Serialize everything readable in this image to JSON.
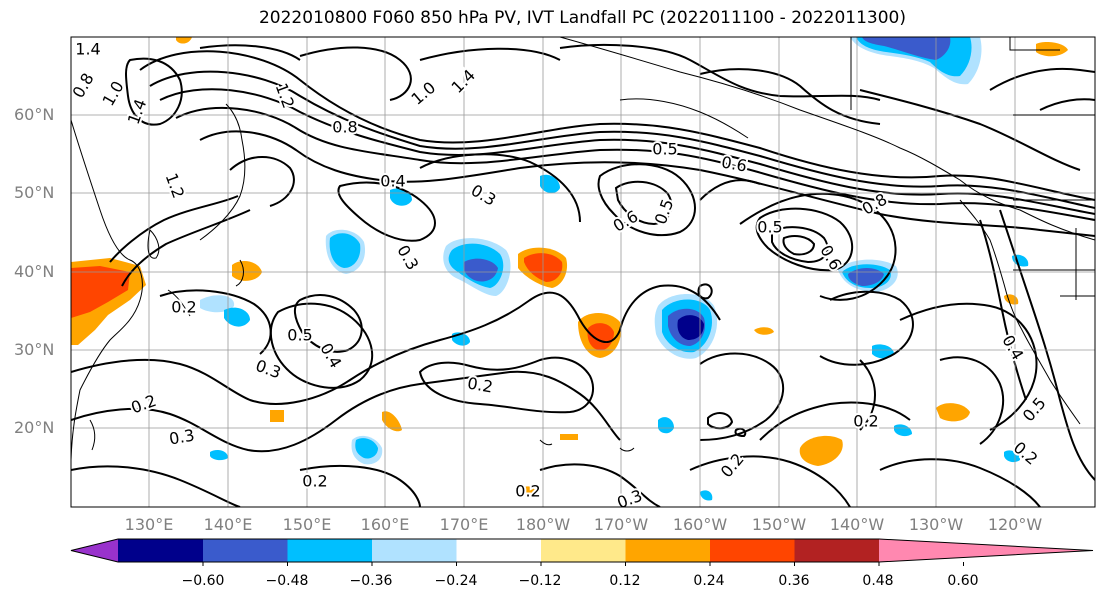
{
  "title": "2022010800 F060 850 hPa PV, IVT Landfall PC (2022011100 - 2022011300)",
  "lat_labels": [
    "60°N",
    "50°N",
    "40°N",
    "30°N",
    "20°N"
  ],
  "lon_labels": [
    "130°E",
    "140°E",
    "150°E",
    "160°E",
    "170°E",
    "180°W",
    "170°W",
    "160°W",
    "150°W",
    "140°W",
    "130°W",
    "120°W"
  ],
  "colorbar": {
    "ticks": [
      "−0.60",
      "−0.48",
      "−0.36",
      "−0.24",
      "−0.12",
      "0.12",
      "0.24",
      "0.36",
      "0.48",
      "0.60"
    ],
    "colors": [
      "#9932cc",
      "#00008b",
      "#3a5bcc",
      "#00bfff",
      "#b0e2ff",
      "#ffffff",
      "#ffe98a",
      "#ffa500",
      "#ff4500",
      "#b22222",
      "#ff88b0"
    ]
  },
  "contour_labels": [
    "1.4",
    "0.8",
    "1.0",
    "1.4",
    "1.2",
    "1.0",
    "1.4",
    "0.8",
    "0.4",
    "1.2",
    "0.3",
    "0.5",
    "0.6",
    "0.6",
    "0.5",
    "0.8",
    "0.5",
    "0.6",
    "0.3",
    "0.2",
    "0.5",
    "0.4",
    "0.3",
    "0.2",
    "0.3",
    "0.2",
    "0.2",
    "0.2",
    "0.3",
    "0.2",
    "0.2",
    "0.4",
    "0.5",
    "0.2"
  ]
}
